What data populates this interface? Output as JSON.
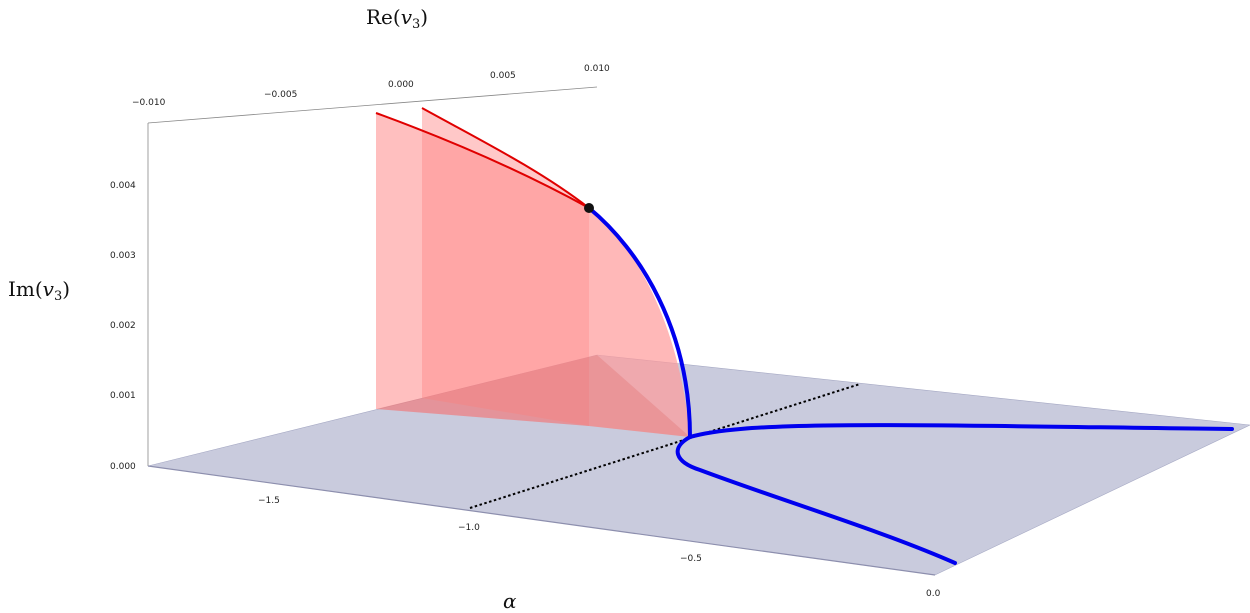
{
  "chart_data": {
    "type": "3d-surface-curve",
    "axes": {
      "x": {
        "label": "α",
        "ticks": [
          "−1.5",
          "−1.0",
          "−0.5",
          "0.0"
        ]
      },
      "y": {
        "label_prefix": "Re(",
        "label_var": "v",
        "label_sub": "3",
        "label_suffix": ")",
        "ticks": [
          "−0.010",
          "−0.005",
          "0.000",
          "0.005",
          "0.010"
        ]
      },
      "z": {
        "label_prefix": "Im(",
        "label_var": "v",
        "label_sub": "3",
        "label_suffix": ")",
        "ticks": [
          "0.000",
          "0.001",
          "0.002",
          "0.003",
          "0.004"
        ]
      }
    },
    "series": [
      {
        "type": "curve",
        "color": "#0000ee"
      },
      {
        "type": "surface",
        "color": "#ff8080"
      },
      {
        "type": "dotted-line",
        "color": "#000000"
      },
      {
        "type": "point",
        "color": "#000000"
      }
    ],
    "colors": {
      "plane": "#c9cbdd",
      "plane_edge": "#8d8fae",
      "red_fill": "#ff9a9a",
      "red_line": "#e00000",
      "blue": "#0000ee"
    }
  }
}
